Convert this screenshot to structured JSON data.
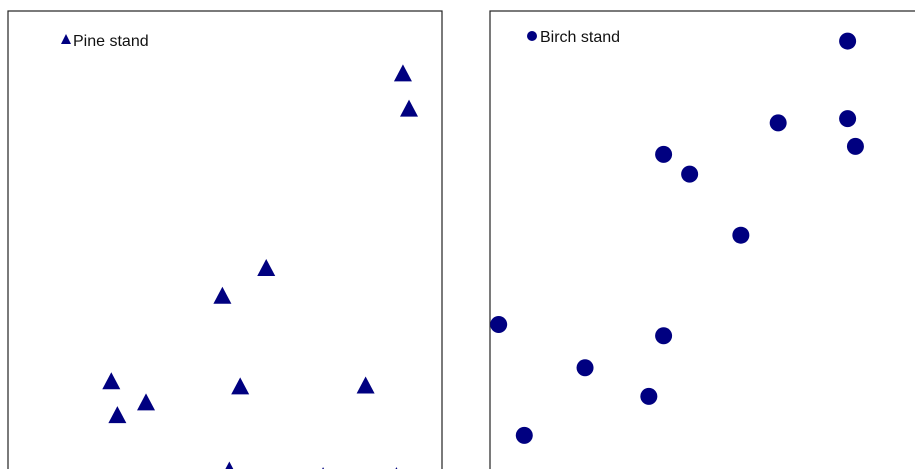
{
  "colors": {
    "marker": "#000080",
    "frame": "#222222",
    "background": "#ffffff"
  },
  "chart_data": [
    {
      "type": "scatter",
      "title": "",
      "xlabel": "",
      "ylabel": "",
      "xlim": [
        0,
        100
      ],
      "ylim": [
        0,
        100
      ],
      "grid": false,
      "legend_position": "top-left",
      "marker": "triangle",
      "series": [
        {
          "name": "Pine stand",
          "x": [
            91.0,
            92.4,
            59.5,
            49.4,
            23.8,
            31.8,
            25.2,
            53.5,
            82.4,
            51.0,
            72.6,
            89.5
          ],
          "y": [
            86.4,
            78.9,
            45.0,
            39.1,
            20.9,
            16.4,
            13.7,
            19.8,
            20.0,
            1.9,
            0.7,
            0.7
          ]
        }
      ]
    },
    {
      "type": "scatter",
      "title": "",
      "xlabel": "",
      "ylabel": "",
      "xlim": [
        0,
        100
      ],
      "ylim": [
        0,
        100
      ],
      "grid": false,
      "legend_position": "top-left",
      "marker": "circle",
      "series": [
        {
          "name": "Birch stand",
          "x": [
            82.4,
            66.4,
            82.4,
            84.2,
            40.0,
            46.0,
            57.8,
            40.0,
            2.0,
            21.9,
            36.6,
            7.9
          ],
          "y": [
            93.6,
            76.2,
            77.1,
            71.2,
            69.5,
            65.3,
            52.3,
            30.9,
            33.3,
            24.1,
            18.0,
            9.7
          ]
        }
      ]
    }
  ]
}
